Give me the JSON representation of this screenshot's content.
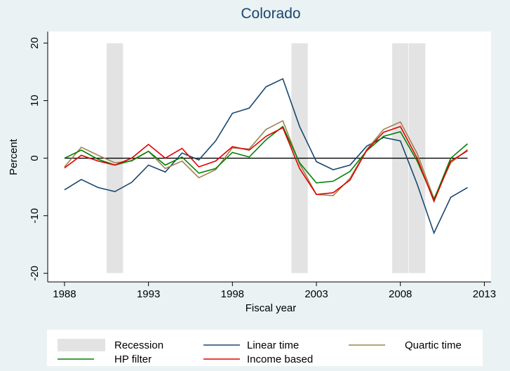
{
  "chart_data": {
    "type": "line",
    "title": "Colorado",
    "x_label": "Fiscal year",
    "y_label": "Percent",
    "x": [
      1988,
      1989,
      1990,
      1991,
      1992,
      1993,
      1994,
      1995,
      1996,
      1997,
      1998,
      1999,
      2000,
      2001,
      2002,
      2003,
      2004,
      2005,
      2006,
      2007,
      2008,
      2009,
      2010,
      2011,
      2012
    ],
    "series": [
      {
        "name": "Linear time",
        "color": "#1a476f",
        "values": [
          -5.5,
          -3.7,
          -5.1,
          -5.8,
          -4.2,
          -1.2,
          -2.4,
          0.9,
          -0.3,
          3.0,
          7.8,
          8.7,
          12.4,
          13.8,
          5.5,
          -0.6,
          -2.0,
          -1.2,
          2.1,
          3.6,
          3.0,
          -4.5,
          -13.0,
          -6.8,
          -5.1
        ]
      },
      {
        "name": "Quartic time",
        "color": "#a0804f",
        "values": [
          -1.5,
          1.9,
          0.5,
          -0.8,
          -0.5,
          1.2,
          -1.8,
          -0.5,
          -3.4,
          -2.0,
          1.8,
          1.6,
          5.0,
          6.5,
          -1.0,
          -6.3,
          -6.5,
          -3.5,
          1.5,
          5.0,
          6.3,
          0.8,
          -7.0,
          -0.8,
          1.5
        ]
      },
      {
        "name": "HP filter",
        "color": "#008000",
        "values": [
          0.0,
          1.4,
          -0.2,
          -1.2,
          -0.4,
          1.2,
          -1.2,
          0.2,
          -2.6,
          -1.8,
          1.0,
          0.2,
          3.2,
          5.5,
          -0.8,
          -4.3,
          -4.0,
          -2.3,
          1.3,
          3.8,
          4.6,
          -0.5,
          -7.2,
          0.0,
          2.5
        ]
      },
      {
        "name": "Income based",
        "color": "#e00000",
        "values": [
          -1.7,
          0.5,
          -0.5,
          -1.2,
          0.0,
          2.4,
          0.0,
          1.7,
          -1.5,
          -0.5,
          2.0,
          1.4,
          3.8,
          5.3,
          -1.8,
          -6.3,
          -6.0,
          -3.8,
          1.4,
          4.5,
          5.5,
          0.0,
          -7.5,
          -0.5,
          1.3
        ]
      }
    ],
    "recession": {
      "name": "Recession",
      "color": "#e3e3e3",
      "spans": [
        [
          1990.5,
          1991.5
        ],
        [
          2001.5,
          2002.5
        ],
        [
          2007.5,
          2008.5
        ],
        [
          2008.5,
          2009.5
        ]
      ]
    },
    "reference_line": 0,
    "xlim": [
      1987,
      2013.4
    ],
    "ylim": [
      -21.5,
      22
    ],
    "xticks": [
      1988,
      1993,
      1998,
      2003,
      2008,
      2013
    ],
    "yticks": [
      -20,
      -10,
      0,
      10,
      20
    ]
  }
}
